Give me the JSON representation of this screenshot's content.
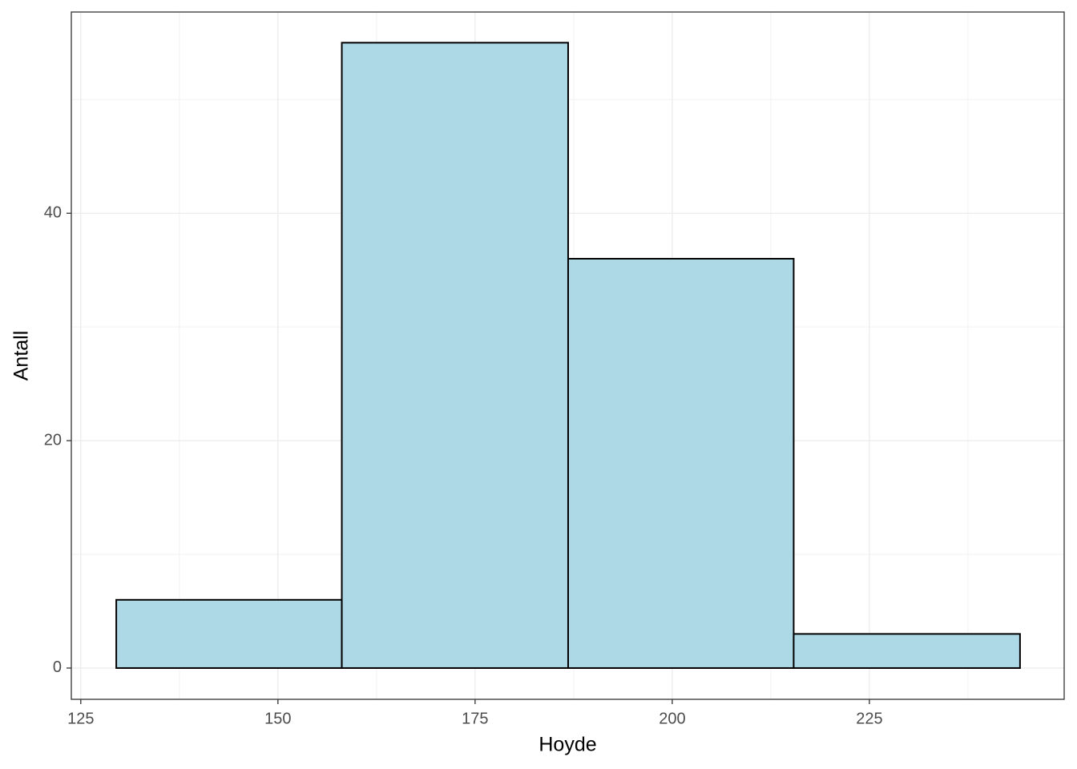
{
  "chart_data": {
    "type": "histogram",
    "x_label": "Hoyde",
    "y_label": "Antall",
    "bins": [
      129.5,
      158.1,
      186.8,
      215.4,
      244.1
    ],
    "values": [
      6,
      55,
      36,
      3
    ],
    "color": "#add8e6",
    "edgecolor": "#000000",
    "xlim": [
      123.8,
      249.7
    ],
    "ylim": [
      -2.75,
      57.7
    ],
    "xticks": [
      125,
      150,
      175,
      200,
      225
    ],
    "yticks": [
      0,
      20,
      40
    ],
    "grid": true,
    "minor_grid": true
  }
}
